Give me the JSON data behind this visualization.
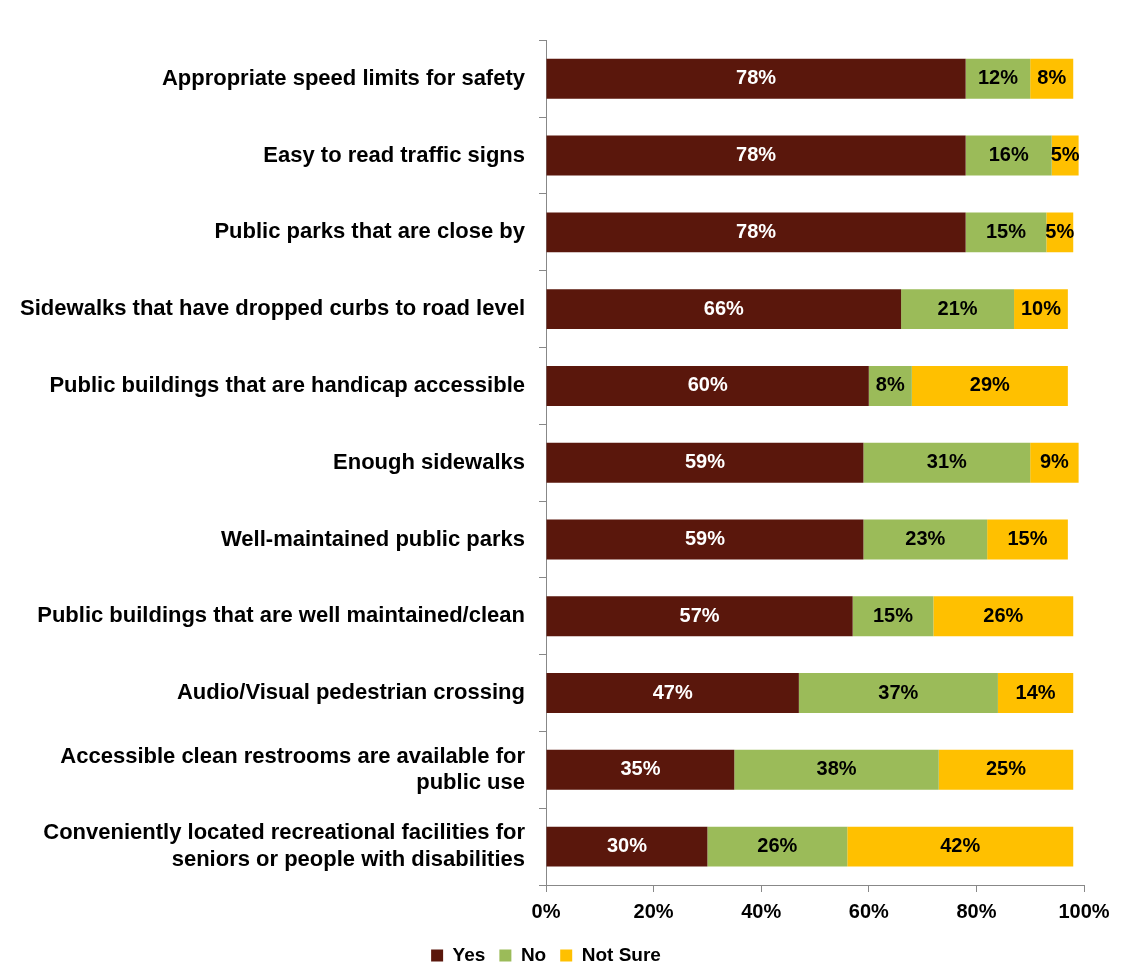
{
  "chart_data": {
    "type": "bar",
    "orientation": "horizontal",
    "stacked": true,
    "categories": [
      "Appropriate speed limits for safety",
      "Easy to read traffic signs",
      "Public parks that are close by",
      "Sidewalks that have dropped curbs to road level",
      "Public buildings that are handicap accessible",
      "Enough sidewalks",
      "Well-maintained public parks",
      "Public buildings that are well maintained/clean",
      "Audio/Visual pedestrian crossing",
      "Accessible clean restrooms are available for public use",
      "Conveniently located recreational facilities for seniors or people with disabilities"
    ],
    "series": [
      {
        "name": "Yes",
        "color": "#5a170c",
        "values": [
          78,
          78,
          78,
          66,
          60,
          59,
          59,
          57,
          47,
          35,
          30
        ],
        "value_labels": [
          "78%",
          "78%",
          "78%",
          "66%",
          "60%",
          "59%",
          "59%",
          "57%",
          "47%",
          "35%",
          "30%"
        ]
      },
      {
        "name": "No",
        "color": "#9bbb59",
        "values": [
          12,
          16,
          15,
          21,
          8,
          31,
          23,
          15,
          37,
          38,
          26
        ],
        "value_labels": [
          "12%",
          "16%",
          "15%",
          "21%",
          "8%",
          "31%",
          "23%",
          "15%",
          "37%",
          "38%",
          "26%"
        ]
      },
      {
        "name": "Not Sure",
        "color": "#ffc000",
        "values": [
          8,
          5,
          5,
          10,
          29,
          9,
          15,
          26,
          14,
          25,
          42
        ],
        "value_labels": [
          "8%",
          "5%",
          "5%",
          "10%",
          "29%",
          "9%",
          "15%",
          "26%",
          "14%",
          "25%",
          "42%"
        ]
      }
    ],
    "xlim": [
      0,
      100
    ],
    "xticks": [
      {
        "value": 0,
        "label": "0%"
      },
      {
        "value": 20,
        "label": "20%"
      },
      {
        "value": 40,
        "label": "40%"
      },
      {
        "value": 60,
        "label": "60%"
      },
      {
        "value": 80,
        "label": "80%"
      },
      {
        "value": 100,
        "label": "100%"
      }
    ],
    "grid": false,
    "legend": "bottom"
  }
}
